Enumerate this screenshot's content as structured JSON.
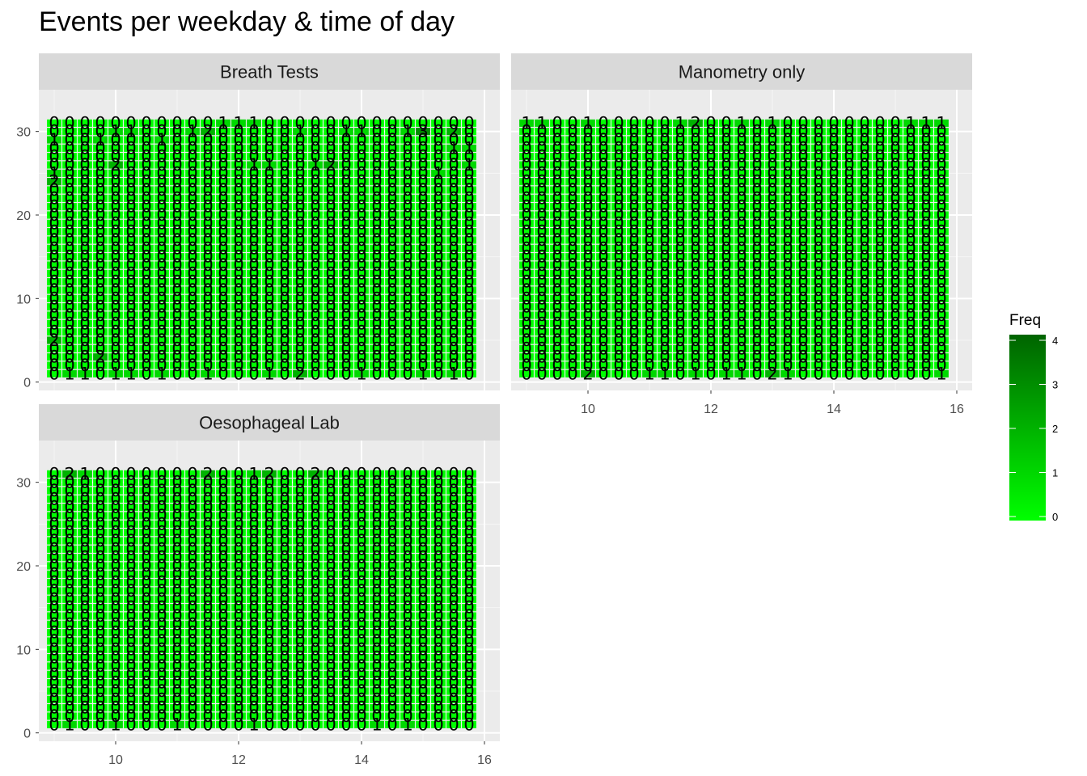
{
  "chart_data": {
    "type": "heatmap",
    "title": "Events per weekday & time of day",
    "xlim": [
      8.75,
      16.25
    ],
    "ylim": [
      -1,
      35
    ],
    "x_ticks": [
      10,
      12,
      14,
      16
    ],
    "y_ticks": [
      0,
      10,
      20,
      30
    ],
    "x_bin_width": 0.25,
    "x_bin_start": 9.0,
    "x_bin_end": 15.75,
    "y_bin_start": 1,
    "y_bin_end": 31,
    "fill_scale": {
      "low": "#00ff00",
      "high": "#006400",
      "min": 0,
      "max": 4,
      "breaks": [
        0,
        1,
        2,
        3,
        4
      ]
    },
    "legend": {
      "title": "Freq",
      "position": "right"
    },
    "grid": true,
    "panels": [
      {
        "name": "Breath Tests",
        "rows": [
          "0000000000011100000000000000",
          "0000110001200000100110013020",
          "1001000100000000000000000000",
          "0000000000000000000000000011",
          "0000000000000000000000000000",
          "0000200000000110012000000001",
          "1000000000000000000000000100",
          "2000000000000000000000000000",
          "0000000000000000000000000000",
          "0000000000000000000000000000",
          "0000000000000000000000000000",
          "0000000000000000000000000000",
          "0000000000000000000000000000",
          "0000000000000000000000000000",
          "0000000000000000000000000000",
          "0000000000000000000000000000",
          "0000000000000000000000000000",
          "0000000000000000000000000000",
          "0000000000000000000000000000",
          "0000000000000000000000000000",
          "0000000000000000000000000000",
          "0000000000000000000000000000",
          "0000000000000000000000000000",
          "0000000000000000000000000000",
          "0000000000000000000000000000",
          "0000000000000000000000000000",
          "2000000000000000000000000000",
          "0000000000000000000000000000",
          "0002000000000000000000000000",
          "0000000000000000000000000000",
          "0110110100100010200010001010"
        ]
      },
      {
        "name": "Manometry only",
        "rows": [
          "1100100000120010100000000111",
          "0000000000000000000000000000",
          "0000000000000000000000000000",
          "0000000000000000000000000000",
          "0000000000000000000000000000",
          "0000000000000000000000000000",
          "0000000000000000000000000000",
          "0000000000000000000000000000",
          "0000000000000000000000000000",
          "0000000000000000000000000000",
          "0000000000000000000000000000",
          "0000000000000000000000000000",
          "0000000000000000000000000000",
          "0000000000000000000000000000",
          "0000000000000000000000000000",
          "0000000000000000000000000000",
          "0000000000000000000000000000",
          "0000000000000000000000000000",
          "0000000000000000000000000000",
          "0000000000000000000000000000",
          "0000000000000000000000000000",
          "0000000000000000000000000000",
          "0000000000000000000000000000",
          "0000000000000000000000000000",
          "0000000000000000000000000000",
          "0000000000000000000000000000",
          "0000000000000000000000000000",
          "0000000000000000000000000000",
          "0000000000000000000000000000",
          "0000000000000000000000000000",
          "0000200011010110210000000001"
        ]
      },
      {
        "name": "Oesophageal Lab",
        "rows": [
          "0210000000200120020000000000",
          "0000000000000000000000000000",
          "0000000000000000000000000000",
          "0000000000000000000000000000",
          "0000000000000000000000000000",
          "0000000000000000000000000000",
          "0000000000000000000000000000",
          "0000000000000000000000000000",
          "0000000000000000000000000000",
          "0000000000000000000000000000",
          "0000000000000000000000000000",
          "0000000000000000000000000000",
          "0000000000000000000000000000",
          "0000000000000000000000000000",
          "0000000000000000000000000000",
          "0000000000000000000000000000",
          "0000000000000000000000000000",
          "0000000000000000000000000000",
          "0000000000000000000000000000",
          "0000000000000000000000000000",
          "0000000000000000000000000000",
          "0000000000000000000000000000",
          "0000000000000000000000000000",
          "0000000000000000000000000000",
          "0000000000000000000000000000",
          "0000000000000000000000000000",
          "0000000000000000000000000000",
          "0000000000000000000000000000",
          "0000000000000000000000000000",
          "0000000000000000000000000000",
          "0100100010000100000001010000"
        ]
      }
    ]
  }
}
